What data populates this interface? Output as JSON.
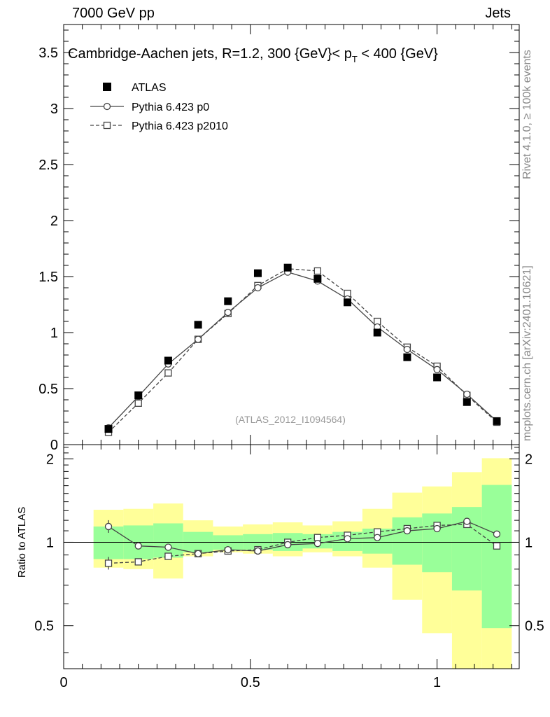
{
  "header": {
    "left": "7000 GeV pp",
    "right": "Jets"
  },
  "side_labels": {
    "rivet": "Rivet 4.1.0, ≥ 100k events",
    "mcplots": "mcplots.cern.ch [arXiv:2401.10621]"
  },
  "chart_data": {
    "type": "scatter",
    "title": "Cambridge-Aachen jets, R=1.2,  300 {GeV}< p_T < 400 {GeV}",
    "title_parts": {
      "main": "Cambridge-Aachen jets, R=1.2,  300 {GeV}< p",
      "sub": "T",
      "tail": " < 400 {GeV}"
    },
    "watermark": "(ATLAS_2012_I1094564)",
    "x": [
      0.12,
      0.2,
      0.28,
      0.36,
      0.44,
      0.52,
      0.6,
      0.68,
      0.76,
      0.84,
      0.92,
      1.0,
      1.08,
      1.16
    ],
    "xlim": [
      0,
      1.22
    ],
    "main_panel": {
      "ylim": [
        0,
        3.75
      ],
      "yticks": [
        0,
        0.5,
        1,
        1.5,
        2,
        2.5,
        3,
        3.5
      ],
      "ytick_labels": [
        "0",
        "0.5",
        "1",
        "1.5",
        "2",
        "2.5",
        "3",
        "3.5"
      ]
    },
    "ratio_panel": {
      "ylabel": "Ratio to ATLAS",
      "ylim": [
        0.35,
        2.25
      ],
      "yticks": [
        0.5,
        1,
        2
      ],
      "ytick_labels": [
        "0.5",
        "1",
        "2"
      ]
    },
    "xticks": [
      0,
      0.5,
      1
    ],
    "xtick_labels": [
      "0",
      "0.5",
      "1"
    ],
    "legend": [
      "ATLAS",
      "Pythia 6.423 p0",
      "Pythia 6.423 p2010"
    ],
    "series": [
      {
        "name": "ATLAS",
        "values": [
          0.14,
          0.44,
          0.75,
          1.07,
          1.28,
          1.53,
          1.58,
          1.48,
          1.27,
          1.0,
          0.78,
          0.6,
          0.38,
          0.21
        ],
        "band_inner": [
          [
            0.87,
            1.14
          ],
          [
            0.87,
            1.15
          ],
          [
            0.88,
            1.17
          ],
          [
            0.92,
            1.09
          ],
          [
            0.94,
            1.06
          ],
          [
            0.94,
            1.07
          ],
          [
            0.93,
            1.08
          ],
          [
            0.95,
            1.07
          ],
          [
            0.93,
            1.09
          ],
          [
            0.91,
            1.12
          ],
          [
            0.83,
            1.23
          ],
          [
            0.78,
            1.27
          ],
          [
            0.67,
            1.34
          ],
          [
            0.49,
            1.61
          ]
        ],
        "band_outer": [
          [
            0.81,
            1.31
          ],
          [
            0.8,
            1.32
          ],
          [
            0.74,
            1.38
          ],
          [
            0.89,
            1.2
          ],
          [
            0.92,
            1.14
          ],
          [
            0.91,
            1.16
          ],
          [
            0.89,
            1.18
          ],
          [
            0.92,
            1.15
          ],
          [
            0.89,
            1.19
          ],
          [
            0.81,
            1.32
          ],
          [
            0.62,
            1.51
          ],
          [
            0.47,
            1.59
          ],
          [
            0.35,
            1.79
          ],
          [
            0.35,
            2.01
          ]
        ]
      },
      {
        "name": "Pythia 6.423 p0",
        "values": [
          0.15,
          0.43,
          0.72,
          0.94,
          1.18,
          1.4,
          1.54,
          1.46,
          1.3,
          1.05,
          0.85,
          0.67,
          0.45,
          0.21
        ],
        "ratio": [
          1.14,
          0.97,
          0.96,
          0.91,
          0.94,
          0.93,
          0.98,
          0.99,
          1.03,
          1.04,
          1.1,
          1.12,
          1.19,
          1.07
        ]
      },
      {
        "name": "Pythia 6.423 p2010",
        "values": [
          0.11,
          0.37,
          0.64,
          0.94,
          1.17,
          1.42,
          1.57,
          1.55,
          1.35,
          1.1,
          0.87,
          0.7,
          0.44,
          0.2
        ],
        "ratio": [
          0.84,
          0.85,
          0.89,
          0.91,
          0.93,
          0.94,
          1.0,
          1.04,
          1.06,
          1.09,
          1.12,
          1.15,
          1.16,
          0.97
        ]
      }
    ]
  }
}
